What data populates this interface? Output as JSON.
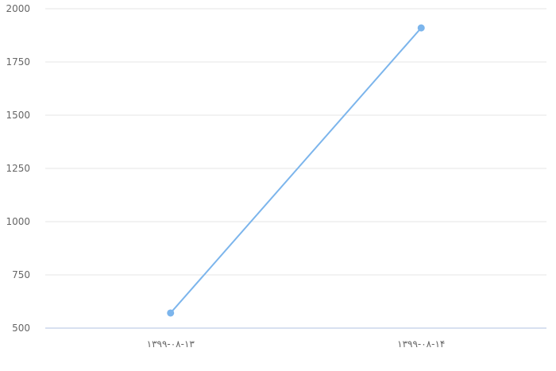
{
  "chart_data": {
    "type": "line",
    "title": "",
    "xlabel": "",
    "ylabel": "",
    "categories": [
      "۱۳۹۹-۰۸-۱۳",
      "۱۳۹۹-۰۸-۱۴"
    ],
    "series": [
      {
        "values": [
          571,
          1910
        ],
        "color": "#7cb5ec"
      }
    ],
    "ylim": [
      500,
      2000
    ],
    "yticks": [
      500,
      750,
      1000,
      1250,
      1500,
      1750,
      2000
    ],
    "grid": true,
    "legend": "none"
  }
}
